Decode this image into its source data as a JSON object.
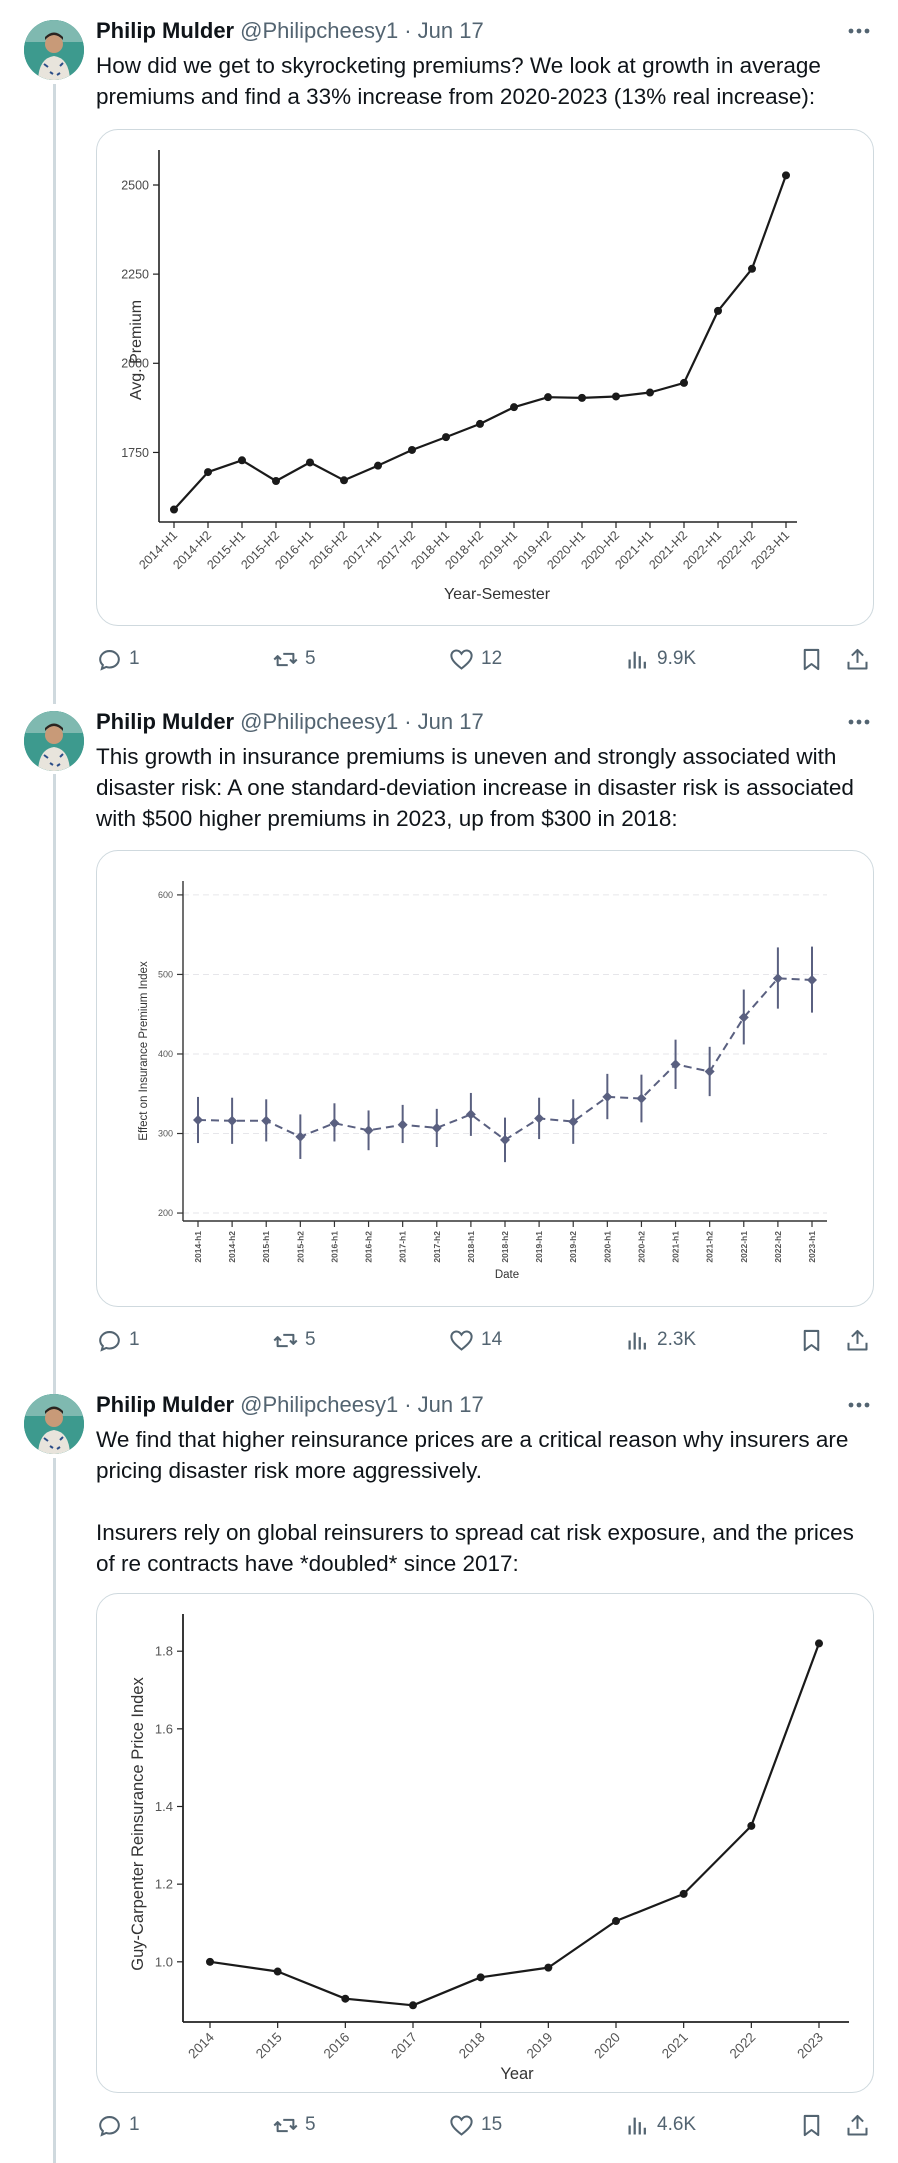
{
  "tweets": [
    {
      "author": {
        "name": "Philip Mulder",
        "handle": "@Philipcheesy1",
        "date": "· Jun 17"
      },
      "paragraphs": [
        "How did we get to skyrocketing premiums?  We look at growth in average premiums and find a 33% increase from 2020-2023 (13% real increase):"
      ],
      "actions": {
        "replies": "1",
        "reposts": "5",
        "likes": "12",
        "views": "9.9K"
      },
      "chart_data": {
        "type": "line",
        "title": "",
        "xlabel": "Year-Semester",
        "ylabel": "Avg. Premium",
        "categories": [
          "2014-H1",
          "2014-H2",
          "2015-H1",
          "2015-H2",
          "2016-H1",
          "2016-H2",
          "2017-H1",
          "2017-H2",
          "2018-H1",
          "2018-H2",
          "2019-H1",
          "2019-H2",
          "2020-H1",
          "2020-H2",
          "2021-H1",
          "2021-H2",
          "2022-H1",
          "2022-H2",
          "2023-H1"
        ],
        "values": [
          1590,
          1695,
          1728,
          1670,
          1722,
          1672,
          1713,
          1757,
          1793,
          1830,
          1877,
          1905,
          1903,
          1907,
          1918,
          1945,
          2147,
          2265,
          2527
        ],
        "yticks": [
          1750,
          2000,
          2250,
          2500
        ],
        "ylim": [
          1555,
          2570
        ],
        "grid": false,
        "color": "#1a1a1a"
      }
    },
    {
      "author": {
        "name": "Philip Mulder",
        "handle": "@Philipcheesy1",
        "date": "· Jun 17"
      },
      "paragraphs": [
        "This growth in insurance premiums is uneven and strongly associated with disaster risk: A one standard-deviation increase in disaster risk is associated with $500 higher premiums in 2023, up from $300 in 2018:"
      ],
      "actions": {
        "replies": "1",
        "reposts": "5",
        "likes": "14",
        "views": "2.3K"
      },
      "chart_data": {
        "type": "line",
        "title": "",
        "xlabel": "Date",
        "ylabel": "Effect on Insurance Premium Index",
        "categories": [
          "2014-h1",
          "2014-h2",
          "2015-h1",
          "2015-h2",
          "2016-h1",
          "2016-h2",
          "2017-h1",
          "2017-h2",
          "2018-h1",
          "2018-h2",
          "2019-h1",
          "2019-h2",
          "2020-h1",
          "2020-h2",
          "2021-h1",
          "2021-h2",
          "2022-h1",
          "2022-h2",
          "2023-h1"
        ],
        "values": [
          317,
          316,
          316,
          296,
          313,
          304,
          311,
          307,
          324,
          292,
          319,
          315,
          346,
          344,
          387,
          378,
          446,
          495,
          493
        ],
        "ci_low": [
          288,
          287,
          290,
          268,
          290,
          279,
          288,
          283,
          297,
          264,
          293,
          287,
          318,
          314,
          356,
          347,
          412,
          457,
          452
        ],
        "ci_high": [
          346,
          345,
          343,
          324,
          338,
          329,
          336,
          331,
          351,
          320,
          345,
          343,
          375,
          374,
          418,
          409,
          481,
          534,
          535
        ],
        "yticks": [
          200,
          300,
          400,
          500,
          600
        ],
        "ylim": [
          190,
          620
        ],
        "grid": true,
        "color": "#5a6080"
      }
    },
    {
      "author": {
        "name": "Philip Mulder",
        "handle": "@Philipcheesy1",
        "date": "· Jun 17"
      },
      "paragraphs": [
        "We find that higher reinsurance prices are a critical reason why insurers are pricing disaster risk more aggressively.",
        "Insurers rely on global reinsurers to spread cat risk exposure, and the prices of re contracts have *doubled* since 2017:"
      ],
      "actions": {
        "replies": "1",
        "reposts": "5",
        "likes": "15",
        "views": "4.6K"
      },
      "chart_data": {
        "type": "line",
        "title": "",
        "xlabel": "Year",
        "ylabel": "Guy-Carpenter Reinsurance Price Index",
        "categories": [
          "2014",
          "2015",
          "2016",
          "2017",
          "2018",
          "2019",
          "2020",
          "2021",
          "2022",
          "2023"
        ],
        "values": [
          1.0,
          0.975,
          0.905,
          0.888,
          0.96,
          0.985,
          1.105,
          1.175,
          1.35,
          1.82
        ],
        "yticks": [
          1.0,
          1.2,
          1.4,
          1.6,
          1.8
        ],
        "ylim": [
          0.845,
          1.87
        ],
        "grid": false,
        "color": "#1a1a1a"
      }
    }
  ]
}
